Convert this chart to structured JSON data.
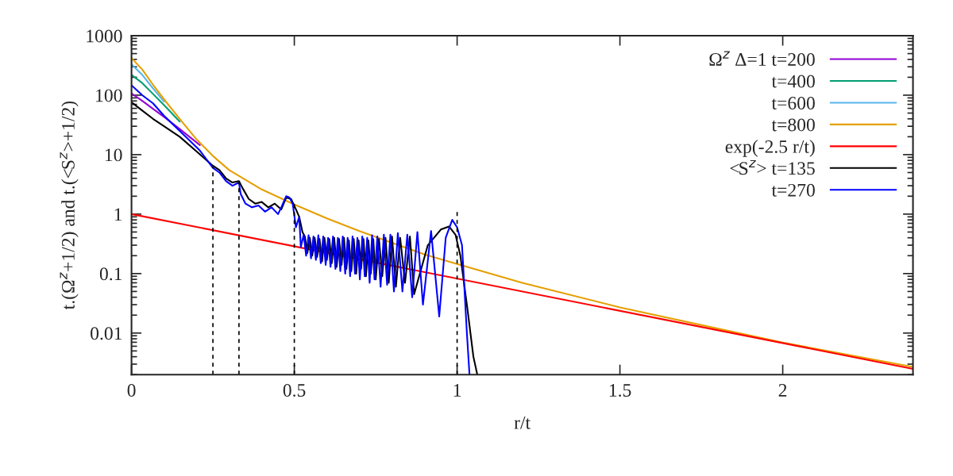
{
  "chart_data": {
    "type": "line",
    "xlabel": "r/t",
    "ylabel": "t.(Ω$^{z}$+1/2) and t.(<S$^{z}$>+1/2)",
    "log": "y",
    "legend": "top right",
    "xlim": [
      0,
      2.4
    ],
    "ylim": [
      0.002,
      1000
    ],
    "xticks": [
      0,
      0.5,
      1,
      1.5,
      2
    ],
    "yticks": [
      0.01,
      0.1,
      1,
      10,
      100,
      1000
    ],
    "series": [
      {
        "name": "Ω$^{z}$ Δ=1 t=200",
        "color": "#9400d3",
        "x": [
          0,
          0.033,
          0.066,
          0.1,
          0.148,
          0.21
        ],
        "values": [
          107,
          80,
          59,
          43,
          27,
          14.5
        ]
      },
      {
        "name": "t=400",
        "color": "#009e73",
        "x": [
          0,
          0.033,
          0.066,
          0.1,
          0.148
        ],
        "values": [
          220,
          160,
          105,
          68,
          36
        ]
      },
      {
        "name": "t=600",
        "color": "#56b4e9",
        "x": [
          0,
          0.033,
          0.066,
          0.1
        ],
        "values": [
          330,
          220,
          130,
          78
        ]
      },
      {
        "name": "t=800",
        "color": "#e69f00",
        "x": [
          0,
          0.033,
          0.066,
          0.1,
          0.148,
          0.2,
          0.25,
          0.3,
          0.4,
          0.5,
          0.6,
          0.7,
          0.8,
          0.9,
          1.0,
          1.2,
          1.5,
          2.0,
          2.4
        ],
        "values": [
          420,
          270,
          150,
          85,
          40,
          18,
          9.5,
          5.5,
          2.6,
          1.45,
          0.85,
          0.52,
          0.33,
          0.21,
          0.145,
          0.07,
          0.027,
          0.0069,
          0.0027
        ]
      },
      {
        "name": "exp(-2.5 r/t)",
        "color": "#ff0000",
        "x": [
          0,
          2.4
        ],
        "values": [
          1,
          0.0025
        ]
      },
      {
        "name": "<S$^{z}$> t=135",
        "color": "#000000",
        "x": [
          0,
          0.033,
          0.066,
          0.1,
          0.148,
          0.205,
          0.25,
          0.27,
          0.29,
          0.31,
          0.33,
          0.34,
          0.36,
          0.38,
          0.4,
          0.42,
          0.44,
          0.46,
          0.475,
          0.49,
          0.505,
          0.515,
          0.525,
          0.5325,
          0.54,
          0.5475,
          0.555,
          0.5625,
          0.57,
          0.5775,
          0.585,
          0.5925,
          0.6,
          0.6075,
          0.615,
          0.6225,
          0.63,
          0.6375,
          0.645,
          0.6525,
          0.66,
          0.6675,
          0.675,
          0.6825,
          0.69,
          0.6975,
          0.705,
          0.7125,
          0.72,
          0.7275,
          0.735,
          0.7425,
          0.75,
          0.76,
          0.77,
          0.78,
          0.79,
          0.8,
          0.812,
          0.825,
          0.84,
          0.855,
          0.868,
          0.91,
          0.95,
          0.975,
          0.995,
          1.01,
          1.03,
          1.05,
          1.062
        ],
        "values": [
          76,
          55,
          40,
          30,
          20,
          10.7,
          6.5,
          5.5,
          4.0,
          3.4,
          3.6,
          2.8,
          1.8,
          1.5,
          1.6,
          1.3,
          1.5,
          1.2,
          1.9,
          1.8,
          1.2,
          0.9,
          0.5,
          0.42,
          0.22,
          0.4,
          0.2,
          0.4,
          0.19,
          0.38,
          0.16,
          0.4,
          0.17,
          0.38,
          0.15,
          0.4,
          0.13,
          0.38,
          0.14,
          0.4,
          0.12,
          0.36,
          0.11,
          0.38,
          0.1,
          0.36,
          0.12,
          0.38,
          0.09,
          0.36,
          0.1,
          0.38,
          0.08,
          0.38,
          0.09,
          0.4,
          0.07,
          0.42,
          0.06,
          0.4,
          0.07,
          0.42,
          0.045,
          0.3,
          0.55,
          0.62,
          0.45,
          0.2,
          0.03,
          0.004,
          0.002
        ]
      },
      {
        "name": "t=270",
        "color": "#0000ff",
        "x": [
          0,
          0.033,
          0.066,
          0.1,
          0.148,
          0.21,
          0.25,
          0.27,
          0.29,
          0.31,
          0.33,
          0.335,
          0.35,
          0.37,
          0.39,
          0.41,
          0.43,
          0.45,
          0.46,
          0.475,
          0.485,
          0.495,
          0.505,
          0.515,
          0.52,
          0.5288,
          0.5363,
          0.5438,
          0.5513,
          0.5588,
          0.5663,
          0.5738,
          0.5813,
          0.5888,
          0.5963,
          0.6038,
          0.6113,
          0.6188,
          0.6263,
          0.6338,
          0.6413,
          0.6488,
          0.6563,
          0.6638,
          0.6713,
          0.6788,
          0.6863,
          0.6938,
          0.7013,
          0.7088,
          0.7163,
          0.7238,
          0.7313,
          0.7388,
          0.7463,
          0.755,
          0.765,
          0.775,
          0.785,
          0.795,
          0.806,
          0.818,
          0.832,
          0.847,
          0.862,
          0.878,
          0.895,
          0.92,
          0.945,
          0.965,
          0.985,
          1.0,
          1.015,
          1.03,
          1.038
        ],
        "values": [
          147,
          100,
          73,
          45,
          25,
          11.7,
          6.0,
          5.0,
          3.6,
          3.0,
          3.4,
          2.2,
          1.5,
          1.3,
          1.4,
          1.1,
          1.3,
          1.0,
          1.3,
          2.0,
          1.9,
          1.5,
          0.6,
          0.9,
          0.28,
          0.45,
          0.2,
          0.44,
          0.18,
          0.42,
          0.17,
          0.44,
          0.15,
          0.42,
          0.14,
          0.4,
          0.13,
          0.42,
          0.12,
          0.4,
          0.11,
          0.42,
          0.1,
          0.4,
          0.09,
          0.42,
          0.1,
          0.4,
          0.08,
          0.42,
          0.09,
          0.4,
          0.07,
          0.44,
          0.08,
          0.42,
          0.06,
          0.45,
          0.065,
          0.45,
          0.05,
          0.48,
          0.05,
          0.45,
          0.04,
          0.5,
          0.03,
          0.52,
          0.019,
          0.4,
          0.8,
          0.6,
          0.3,
          0.01,
          0.002
        ]
      },
      {
        "color": "#000000",
        "line_style": "dashed",
        "x": [
          0.25,
          0.25
        ],
        "values": [
          0.002,
          6.3
        ]
      },
      {
        "color": "#000000",
        "line_style": "dashed",
        "x": [
          0.33,
          0.33
        ],
        "values": [
          0.002,
          3.6
        ]
      },
      {
        "color": "#000000",
        "line_style": "dashed",
        "x": [
          0.5,
          0.5
        ],
        "values": [
          0.002,
          1.5
        ]
      },
      {
        "color": "#000000",
        "line_style": "dashed",
        "x": [
          1.0,
          1.0
        ],
        "values": [
          0.002,
          1.17
        ]
      }
    ]
  }
}
